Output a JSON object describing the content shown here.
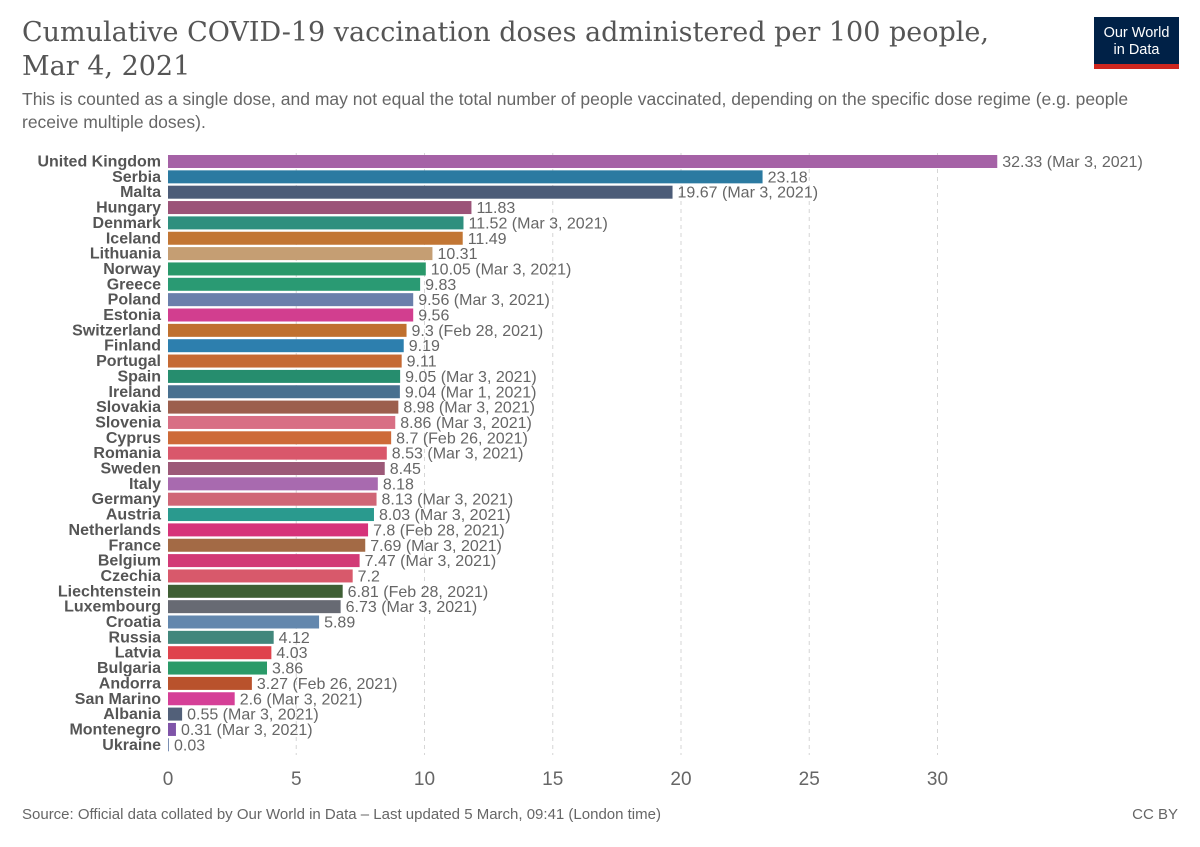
{
  "header": {
    "title": "Cumulative COVID-19 vaccination doses administered per 100 people, Mar 4, 2021",
    "subtitle": "This is counted as a single dose, and may not equal the total number of people vaccinated, depending on the specific dose regime (e.g. people receive multiple doses).",
    "logo_line1": "Our World",
    "logo_line2": "in Data"
  },
  "footer": {
    "source": "Source: Official data collated by Our World in Data – Last updated 5 March, 09:41 (London time)",
    "license": "CC BY"
  },
  "colors": {
    "logo_bg": "#002147",
    "logo_accent": "#ce261e"
  },
  "chart_data": {
    "type": "bar",
    "orientation": "horizontal",
    "title": "Cumulative COVID-19 vaccination doses administered per 100 people, Mar 4, 2021",
    "xlabel": "",
    "ylabel": "",
    "xlim": [
      0,
      33
    ],
    "x_ticks": [
      0,
      5,
      10,
      15,
      20,
      25,
      30
    ],
    "grid": "vertical dashed",
    "categories": [
      "United Kingdom",
      "Serbia",
      "Malta",
      "Hungary",
      "Denmark",
      "Iceland",
      "Lithuania",
      "Norway",
      "Greece",
      "Poland",
      "Estonia",
      "Switzerland",
      "Finland",
      "Portugal",
      "Spain",
      "Ireland",
      "Slovakia",
      "Slovenia",
      "Cyprus",
      "Romania",
      "Sweden",
      "Italy",
      "Germany",
      "Austria",
      "Netherlands",
      "France",
      "Belgium",
      "Czechia",
      "Liechtenstein",
      "Luxembourg",
      "Croatia",
      "Russia",
      "Latvia",
      "Bulgaria",
      "Andorra",
      "San Marino",
      "Albania",
      "Montenegro",
      "Ukraine"
    ],
    "values": [
      32.33,
      23.18,
      19.67,
      11.83,
      11.52,
      11.49,
      10.31,
      10.05,
      9.83,
      9.56,
      9.56,
      9.3,
      9.19,
      9.11,
      9.05,
      9.04,
      8.98,
      8.86,
      8.7,
      8.53,
      8.45,
      8.18,
      8.13,
      8.03,
      7.8,
      7.69,
      7.47,
      7.2,
      6.81,
      6.73,
      5.89,
      4.12,
      4.03,
      3.86,
      3.27,
      2.6,
      0.55,
      0.31,
      0.03
    ],
    "value_labels": [
      "32.33 (Mar 3, 2021)",
      "23.18",
      "19.67 (Mar 3, 2021)",
      "11.83",
      "11.52 (Mar 3, 2021)",
      "11.49",
      "10.31",
      "10.05 (Mar 3, 2021)",
      "9.83",
      "9.56 (Mar 3, 2021)",
      "9.56",
      "9.3 (Feb 28, 2021)",
      "9.19",
      "9.11",
      "9.05 (Mar 3, 2021)",
      "9.04 (Mar 1, 2021)",
      "8.98 (Mar 3, 2021)",
      "8.86 (Mar 3, 2021)",
      "8.7 (Feb 26, 2021)",
      "8.53 (Mar 3, 2021)",
      "8.45",
      "8.18",
      "8.13 (Mar 3, 2021)",
      "8.03 (Mar 3, 2021)",
      "7.8 (Feb 28, 2021)",
      "7.69 (Mar 3, 2021)",
      "7.47 (Mar 3, 2021)",
      "7.2",
      "6.81 (Feb 28, 2021)",
      "6.73 (Mar 3, 2021)",
      "5.89",
      "4.12",
      "4.03",
      "3.86",
      "3.27 (Feb 26, 2021)",
      "2.6 (Mar 3, 2021)",
      "0.55 (Mar 3, 2021)",
      "0.31 (Mar 3, 2021)",
      "0.03"
    ],
    "bar_colors": [
      "#a562a6",
      "#2b7aa1",
      "#4c5c78",
      "#9b5378",
      "#2f8f7e",
      "#c27634",
      "#c59e73",
      "#29986a",
      "#2a9a73",
      "#6a7fab",
      "#d23e8f",
      "#c0702e",
      "#2d7fae",
      "#c56a34",
      "#268d6e",
      "#48708f",
      "#9c5f4d",
      "#d86f84",
      "#cd6a38",
      "#d9576b",
      "#9c5978",
      "#a86aaf",
      "#d06677",
      "#2a9a8e",
      "#d6337a",
      "#a36a45",
      "#d23a76",
      "#d8596b",
      "#3f5f34",
      "#676a73",
      "#6387ad",
      "#42877c",
      "#df434d",
      "#2a9a68",
      "#b9522c",
      "#d53f97",
      "#526079",
      "#7f54a8",
      "#7a8fb3"
    ]
  }
}
